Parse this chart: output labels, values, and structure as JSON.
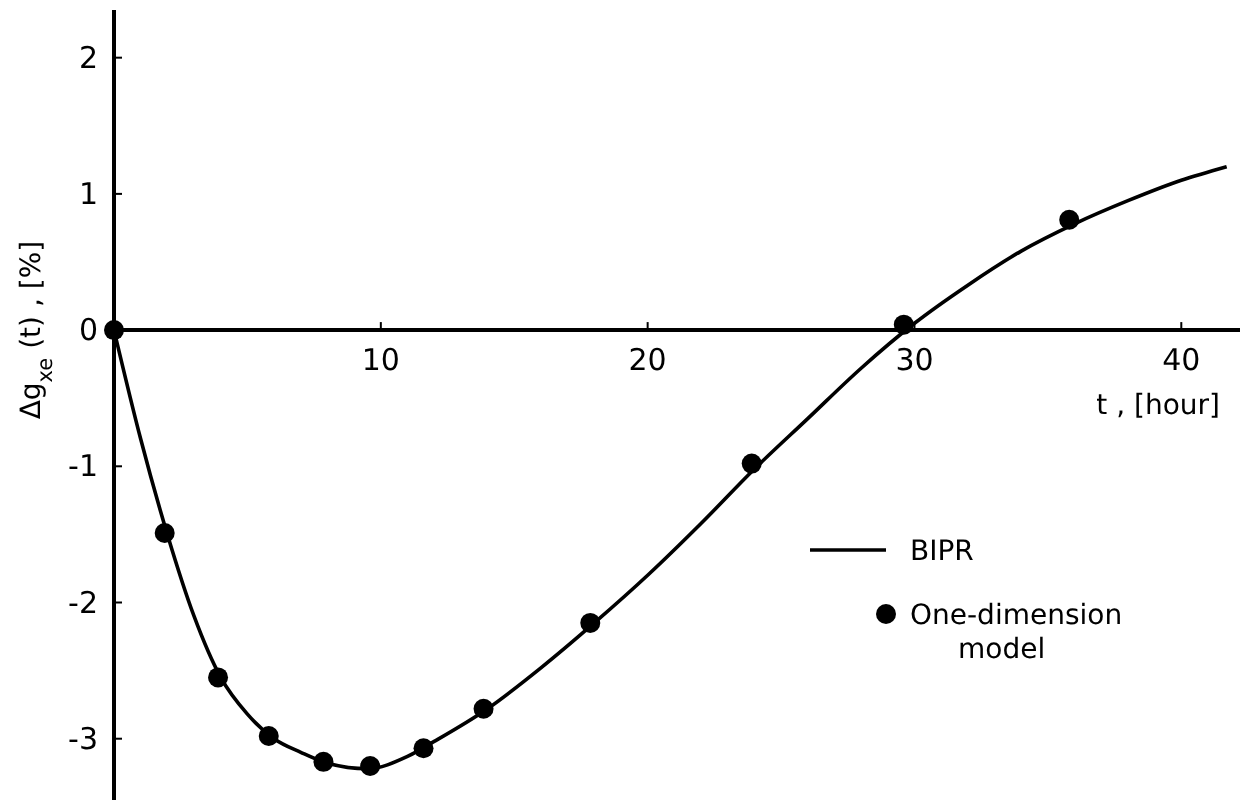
{
  "chart_data": {
    "type": "line",
    "xlabel": "t , [hour]",
    "ylabel": "Δg$_{xe}$ (t) , [%]",
    "xlim": [
      0,
      42.2
    ],
    "ylim": [
      -3.45,
      2.35
    ],
    "xticks": [
      10,
      20,
      30,
      40
    ],
    "yticks": [
      -3,
      -2,
      -1,
      0,
      1,
      2
    ],
    "grid": false,
    "legend": "bottom right",
    "series": [
      {
        "name": "BIPR",
        "color": "#000000",
        "marker": "none",
        "line_style": "solid",
        "x": [
          0,
          1,
          2,
          3,
          4,
          5,
          6,
          7,
          8,
          9.5,
          11,
          12,
          14,
          16,
          18,
          20,
          22,
          24,
          26,
          28,
          30,
          32,
          34,
          36,
          38,
          40,
          41.7
        ],
        "values": [
          0,
          -0.8,
          -1.5,
          -2.1,
          -2.55,
          -2.82,
          -3.0,
          -3.1,
          -3.18,
          -3.22,
          -3.13,
          -3.02,
          -2.78,
          -2.48,
          -2.15,
          -1.8,
          -1.42,
          -1.02,
          -0.65,
          -0.28,
          0.05,
          0.33,
          0.58,
          0.78,
          0.95,
          1.1,
          1.2
        ]
      },
      {
        "name": "One-dimension model",
        "type": "scatter",
        "color": "#000000",
        "marker": "circle",
        "x": [
          0,
          1.9,
          3.9,
          5.8,
          7.85,
          9.6,
          11.6,
          13.85,
          17.85,
          23.9,
          29.6,
          35.8
        ],
        "values": [
          0,
          -1.49,
          -2.55,
          -2.98,
          -3.17,
          -3.2,
          -3.07,
          -2.78,
          -2.15,
          -0.98,
          0.04,
          0.81
        ]
      }
    ]
  }
}
